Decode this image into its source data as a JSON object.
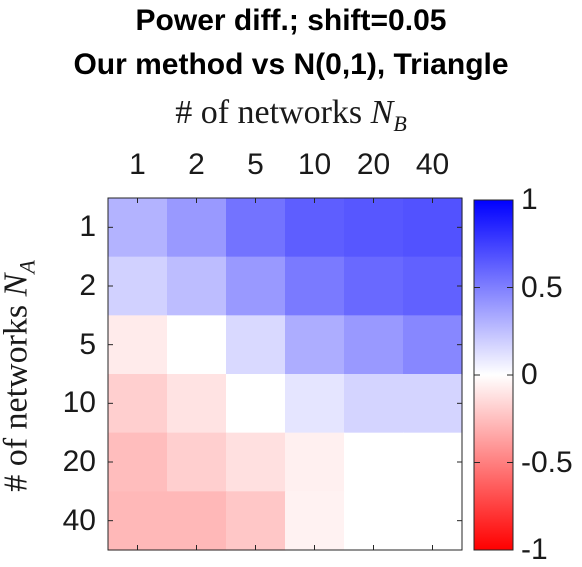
{
  "chart_data": {
    "type": "heatmap",
    "title": [
      "Power diff.; shift=0.05",
      "Our method vs N(0,1), Triangle"
    ],
    "xlabel": "# of networks N_B",
    "ylabel": "# of networks N_A",
    "xlabel_parts": {
      "text": "# of networks ",
      "var": "N",
      "sub": "B"
    },
    "ylabel_parts": {
      "text": "# of networks ",
      "var": "N",
      "sub": "A"
    },
    "x_categories": [
      "1",
      "2",
      "5",
      "10",
      "20",
      "40"
    ],
    "y_categories": [
      "1",
      "2",
      "5",
      "10",
      "20",
      "40"
    ],
    "values": [
      [
        0.3,
        0.4,
        0.55,
        0.63,
        0.66,
        0.68
      ],
      [
        0.18,
        0.26,
        0.4,
        0.52,
        0.59,
        0.62
      ],
      [
        -0.08,
        0.0,
        0.15,
        0.32,
        0.4,
        0.47
      ],
      [
        -0.19,
        -0.11,
        0.0,
        0.1,
        0.17,
        0.17
      ],
      [
        -0.26,
        -0.19,
        -0.12,
        -0.06,
        0.0,
        0.0
      ],
      [
        -0.28,
        -0.28,
        -0.22,
        -0.05,
        0.0,
        0.0
      ]
    ],
    "colorbar": {
      "range": [
        -1,
        1
      ],
      "ticks": [
        1,
        0.5,
        0,
        -0.5,
        -1
      ],
      "tick_labels": [
        "1",
        "0.5",
        "0",
        "-0.5",
        "-1"
      ],
      "colors": {
        "low": "#ff0000",
        "mid": "#ffffff",
        "high": "#0000ff"
      }
    }
  }
}
